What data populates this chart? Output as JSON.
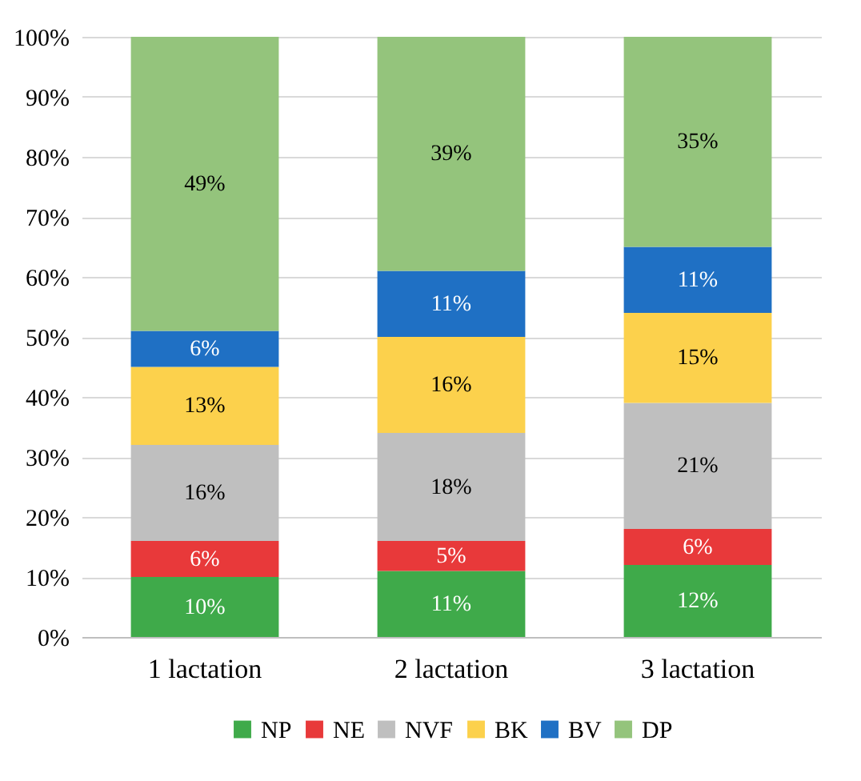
{
  "chart_data": {
    "type": "bar",
    "stacked": true,
    "categories": [
      "1 lactation",
      "2 lactation",
      "3 lactation"
    ],
    "series": [
      {
        "name": "NP",
        "color": "#3faa4a",
        "values": [
          10,
          11,
          12
        ],
        "value_labels": [
          "10%",
          "11%",
          "12%"
        ]
      },
      {
        "name": "NE",
        "color": "#e8393a",
        "values": [
          6,
          5,
          6
        ],
        "value_labels": [
          "6%",
          "5%",
          "6%"
        ]
      },
      {
        "name": "NVF",
        "color": "#bfbfbf",
        "values": [
          16,
          18,
          21
        ],
        "value_labels": [
          "16%",
          "18%",
          "21%"
        ]
      },
      {
        "name": "BK",
        "color": "#fcd14c",
        "values": [
          13,
          16,
          15
        ],
        "value_labels": [
          "13%",
          "16%",
          "15%"
        ]
      },
      {
        "name": "BV",
        "color": "#1f70c4",
        "values": [
          6,
          11,
          11
        ],
        "value_labels": [
          "6%",
          "11%",
          "11%"
        ]
      },
      {
        "name": "DP",
        "color": "#94c47c",
        "values": [
          49,
          39,
          35
        ],
        "value_labels": [
          "49%",
          "39%",
          "35%"
        ]
      }
    ],
    "ylim": [
      0,
      100
    ],
    "yticks": [
      {
        "value": 0,
        "label": "0%"
      },
      {
        "value": 10,
        "label": "10%"
      },
      {
        "value": 20,
        "label": "20%"
      },
      {
        "value": 30,
        "label": "30%"
      },
      {
        "value": 40,
        "label": "40%"
      },
      {
        "value": 50,
        "label": "50%"
      },
      {
        "value": 60,
        "label": "60%"
      },
      {
        "value": 70,
        "label": "70%"
      },
      {
        "value": 80,
        "label": "80%"
      },
      {
        "value": 90,
        "label": "90%"
      },
      {
        "value": 100,
        "label": "100%"
      }
    ],
    "grid": "y",
    "legend": "bottom"
  }
}
